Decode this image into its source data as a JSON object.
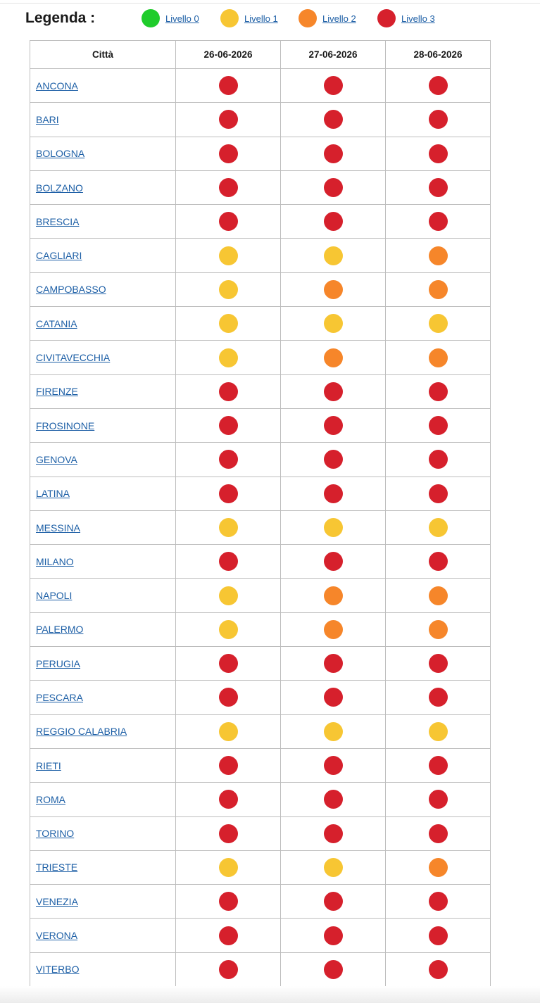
{
  "legend": {
    "title": "Legenda :",
    "items": [
      {
        "label": "Livello 0",
        "color": "#1fcc2b"
      },
      {
        "label": "Livello 1",
        "color": "#f7c633"
      },
      {
        "label": "Livello 2",
        "color": "#f6862a"
      },
      {
        "label": "Livello 3",
        "color": "#d6202c"
      }
    ]
  },
  "table": {
    "headers": [
      "Città",
      "26-06-2026",
      "27-06-2026",
      "28-06-2026"
    ],
    "rows": [
      {
        "city": "ANCONA",
        "levels": [
          3,
          3,
          3
        ]
      },
      {
        "city": "BARI",
        "levels": [
          3,
          3,
          3
        ]
      },
      {
        "city": "BOLOGNA",
        "levels": [
          3,
          3,
          3
        ]
      },
      {
        "city": "BOLZANO",
        "levels": [
          3,
          3,
          3
        ]
      },
      {
        "city": "BRESCIA",
        "levels": [
          3,
          3,
          3
        ]
      },
      {
        "city": "CAGLIARI",
        "levels": [
          1,
          1,
          2
        ]
      },
      {
        "city": "CAMPOBASSO",
        "levels": [
          1,
          2,
          2
        ]
      },
      {
        "city": "CATANIA",
        "levels": [
          1,
          1,
          1
        ]
      },
      {
        "city": "CIVITAVECCHIA",
        "levels": [
          1,
          2,
          2
        ]
      },
      {
        "city": "FIRENZE",
        "levels": [
          3,
          3,
          3
        ]
      },
      {
        "city": "FROSINONE",
        "levels": [
          3,
          3,
          3
        ]
      },
      {
        "city": "GENOVA",
        "levels": [
          3,
          3,
          3
        ]
      },
      {
        "city": "LATINA",
        "levels": [
          3,
          3,
          3
        ]
      },
      {
        "city": "MESSINA",
        "levels": [
          1,
          1,
          1
        ]
      },
      {
        "city": "MILANO",
        "levels": [
          3,
          3,
          3
        ]
      },
      {
        "city": "NAPOLI",
        "levels": [
          1,
          2,
          2
        ]
      },
      {
        "city": "PALERMO",
        "levels": [
          1,
          2,
          2
        ]
      },
      {
        "city": "PERUGIA",
        "levels": [
          3,
          3,
          3
        ]
      },
      {
        "city": "PESCARA",
        "levels": [
          3,
          3,
          3
        ]
      },
      {
        "city": "REGGIO CALABRIA",
        "levels": [
          1,
          1,
          1
        ]
      },
      {
        "city": "RIETI",
        "levels": [
          3,
          3,
          3
        ]
      },
      {
        "city": "ROMA",
        "levels": [
          3,
          3,
          3
        ]
      },
      {
        "city": "TORINO",
        "levels": [
          3,
          3,
          3
        ]
      },
      {
        "city": "TRIESTE",
        "levels": [
          1,
          1,
          2
        ]
      },
      {
        "city": "VENEZIA",
        "levels": [
          3,
          3,
          3
        ]
      },
      {
        "city": "VERONA",
        "levels": [
          3,
          3,
          3
        ]
      },
      {
        "city": "VITERBO",
        "levels": [
          3,
          3,
          3
        ]
      }
    ]
  }
}
